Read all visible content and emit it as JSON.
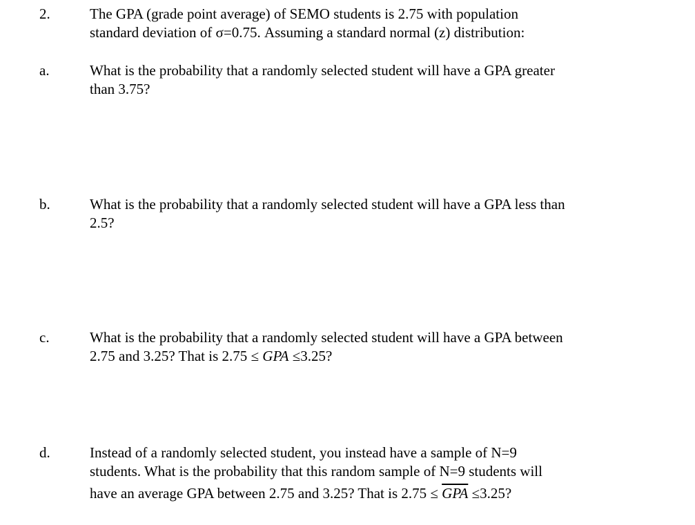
{
  "problem": {
    "number": "2.",
    "intro_line1": "The GPA (grade point average) of SEMO students is 2.75 with population",
    "intro_line2": "standard deviation of σ=0.75.  Assuming a standard normal (z) distribution:"
  },
  "parts": [
    {
      "label": "a.",
      "line1": "What is the probability that a randomly selected student will have a GPA greater",
      "line2": "than 3.75?"
    },
    {
      "label": "b.",
      "line1": "What is the probability that a randomly selected student will have a GPA less than",
      "line2": "2.5?"
    },
    {
      "label": "c.",
      "line1": "What is the probability that a randomly selected student will have a GPA between",
      "line2": "2.75 and 3.25?  That is ",
      "math_lo": "2.75 ≤ ",
      "math_var": "GPA",
      "math_hi": " ≤3.25",
      "math_end": "?"
    },
    {
      "label": "d.",
      "line1": "Instead of a randomly selected student, you instead have a sample of N=9",
      "line2": "students.  What is the probability that this random sample of N=9 students will",
      "line3": "have an average GPA between 2.75 and 3.25?  That is ",
      "math_lo": "2.75 ≤ ",
      "math_var": "GPA",
      "math_hi": " ≤3.25",
      "math_end": "?"
    }
  ]
}
